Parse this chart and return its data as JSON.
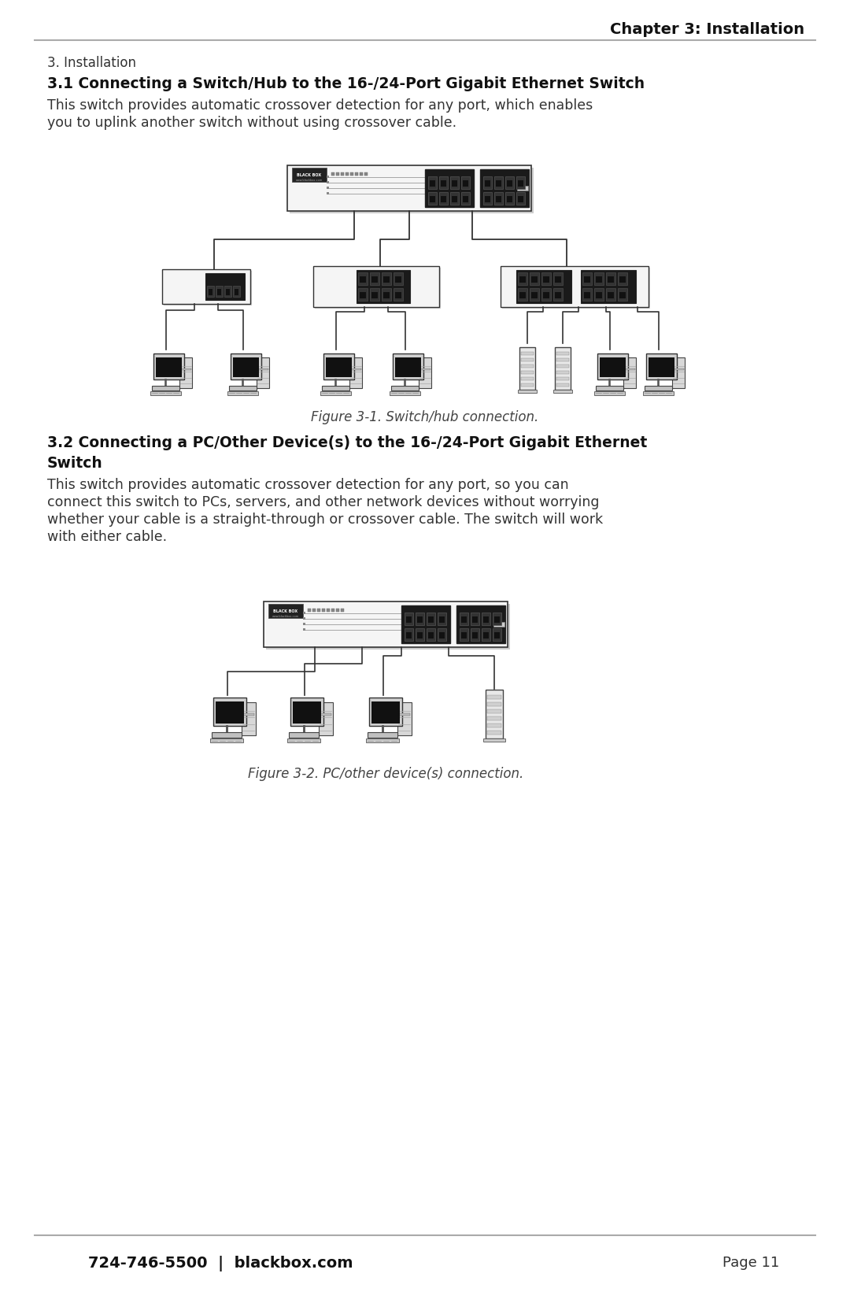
{
  "page_bg": "#ffffff",
  "header_text": "Chapter 3: Installation",
  "footer_left": "724-746-5500  |  blackbox.com",
  "footer_right": "Page 11",
  "section_number": "3. Installation",
  "section_31_title": "3.1 Connecting a Switch/Hub to the 16-/24-Port Gigabit Ethernet Switch",
  "section_31_body1": "This switch provides automatic crossover detection for any port, which enables",
  "section_31_body2": "you to uplink another switch without using crossover cable.",
  "fig1_caption": "Figure 3-1. Switch/hub connection.",
  "section_32_title": "3.2 Connecting a PC/Other Device(s) to the 16-/24-Port Gigabit Ethernet Switch",
  "section_32_body1": "This switch provides automatic crossover detection for any port, so you can",
  "section_32_body2": "connect this switch to PCs, servers, and other network devices without worrying",
  "section_32_body3": "whether your cable is a straight-through or crossover cable. The switch will work",
  "section_32_body4": "with either cable.",
  "fig2_caption": "Figure 3-2. PC/other device(s) connection.",
  "text_color": "#333333",
  "line_color": "#aaaaaa",
  "diagram_color": "#444444"
}
